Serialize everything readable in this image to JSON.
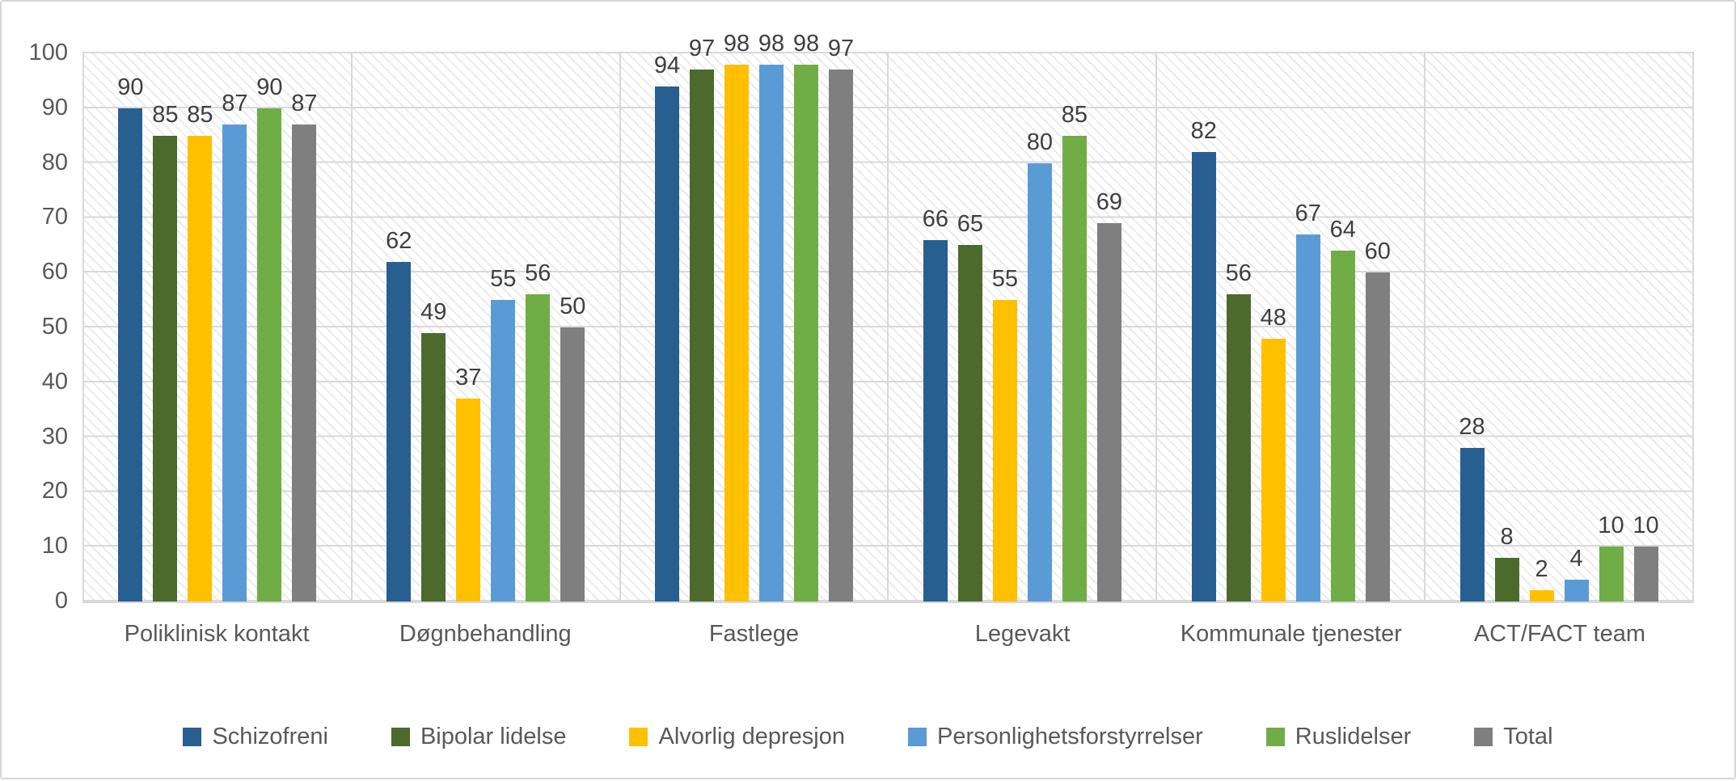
{
  "chart_data": {
    "type": "bar",
    "title": "",
    "xlabel": "",
    "ylabel": "",
    "categories": [
      "Poliklinisk kontakt",
      "Døgnbehandling",
      "Fastlege",
      "Legevakt",
      "Kommunale tjenester",
      "ACT/FACT team"
    ],
    "series": [
      {
        "name": "Schizofreni",
        "color": "#275F91",
        "values": [
          90,
          62,
          94,
          66,
          82,
          28
        ]
      },
      {
        "name": "Bipolar lidelse",
        "color": "#4C6A2C",
        "values": [
          85,
          49,
          97,
          65,
          56,
          8
        ]
      },
      {
        "name": "Alvorlig depresjon",
        "color": "#FFC000",
        "values": [
          85,
          37,
          98,
          55,
          48,
          2
        ]
      },
      {
        "name": "Personlighetsforstyrrelser",
        "color": "#5B9BD5",
        "values": [
          87,
          55,
          98,
          80,
          67,
          4
        ]
      },
      {
        "name": "Ruslidelser",
        "color": "#70AD47",
        "values": [
          90,
          56,
          98,
          85,
          64,
          10
        ]
      },
      {
        "name": "Total",
        "color": "#7F7F7F",
        "values": [
          87,
          50,
          97,
          69,
          60,
          10
        ]
      }
    ],
    "ylim": [
      0,
      100
    ],
    "yticks": [
      0,
      10,
      20,
      30,
      40,
      50,
      60,
      70,
      80,
      90,
      100
    ],
    "grid": "horizontal-gridlines-plus-category-separators, hatched plot background",
    "legend_position": "bottom",
    "data_labels": "above each bar",
    "colors": {
      "gridline": "#d9d9d9",
      "axis_text": "#595959",
      "data_label_text": "#3f3f3f",
      "frame_border": "#d7d7d7"
    }
  }
}
